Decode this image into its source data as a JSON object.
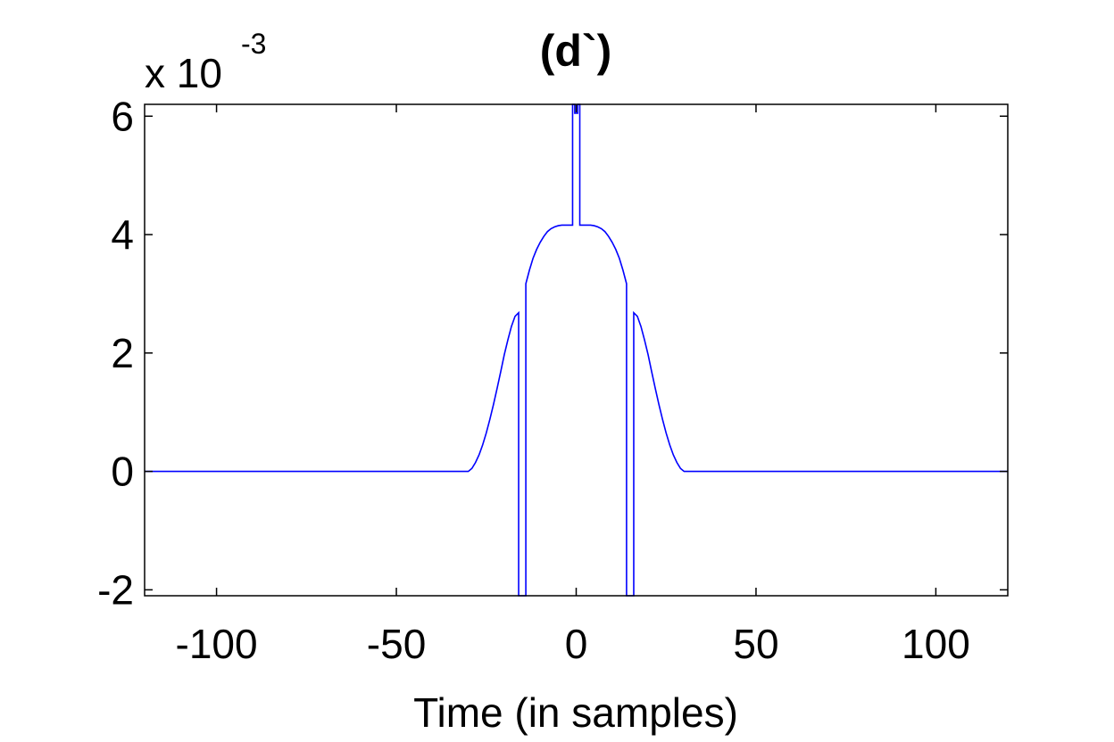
{
  "chart_data": {
    "type": "line",
    "title": "(d`)",
    "xlabel": "Time (in samples)",
    "ylabel": "",
    "y_multiplier": {
      "base": "x 10",
      "exponent": "-3"
    },
    "xlim": [
      -120,
      120
    ],
    "ylim": [
      -2.1,
      6.2
    ],
    "x_ticks": [
      {
        "value": -100,
        "label": "-100"
      },
      {
        "value": -50,
        "label": "-50"
      },
      {
        "value": 0,
        "label": "0"
      },
      {
        "value": 50,
        "label": "50"
      },
      {
        "value": 100,
        "label": "100"
      }
    ],
    "y_ticks": [
      {
        "value": -2,
        "label": "-2"
      },
      {
        "value": 0,
        "label": "0"
      },
      {
        "value": 2,
        "label": "2"
      },
      {
        "value": 4,
        "label": "4"
      },
      {
        "value": 6,
        "label": "6"
      }
    ],
    "grid": false,
    "series": [
      {
        "color": "#0000ff",
        "x": [
          -120,
          -30,
          -29,
          -28,
          -27,
          -26,
          -25,
          -24,
          -23,
          -22,
          -21,
          -20,
          -19,
          -18,
          -17,
          -16,
          -16,
          -15,
          -15,
          -14,
          -14,
          -13,
          -12,
          -11,
          -10,
          -9,
          -8,
          -7,
          -6,
          -5,
          -4,
          -3,
          -2,
          -1,
          -1,
          -0.4,
          -0.4,
          0.4,
          0.4,
          1,
          1,
          2,
          3,
          4,
          5,
          6,
          7,
          8,
          9,
          10,
          11,
          12,
          13,
          14,
          14,
          15,
          15,
          16,
          16,
          17,
          18,
          19,
          20,
          21,
          22,
          23,
          24,
          25,
          26,
          27,
          28,
          29,
          30,
          120
        ],
        "y": [
          0,
          0,
          0.05,
          0.15,
          0.28,
          0.45,
          0.65,
          0.88,
          1.13,
          1.4,
          1.68,
          1.97,
          2.22,
          2.45,
          2.62,
          2.68,
          -2.1,
          -2.1,
          -2.1,
          -2.1,
          3.17,
          3.4,
          3.6,
          3.75,
          3.87,
          3.97,
          4.05,
          4.1,
          4.13,
          4.15,
          4.16,
          4.16,
          4.16,
          4.16,
          6.2,
          6.2,
          6.05,
          6.05,
          6.2,
          6.2,
          4.16,
          4.16,
          4.16,
          4.16,
          4.15,
          4.13,
          4.1,
          4.05,
          3.97,
          3.87,
          3.75,
          3.6,
          3.4,
          3.17,
          -2.1,
          -2.1,
          -2.1,
          -2.1,
          2.68,
          2.62,
          2.45,
          2.22,
          1.97,
          1.68,
          1.4,
          1.13,
          0.88,
          0.65,
          0.45,
          0.28,
          0.15,
          0.05,
          0,
          0
        ]
      }
    ]
  }
}
